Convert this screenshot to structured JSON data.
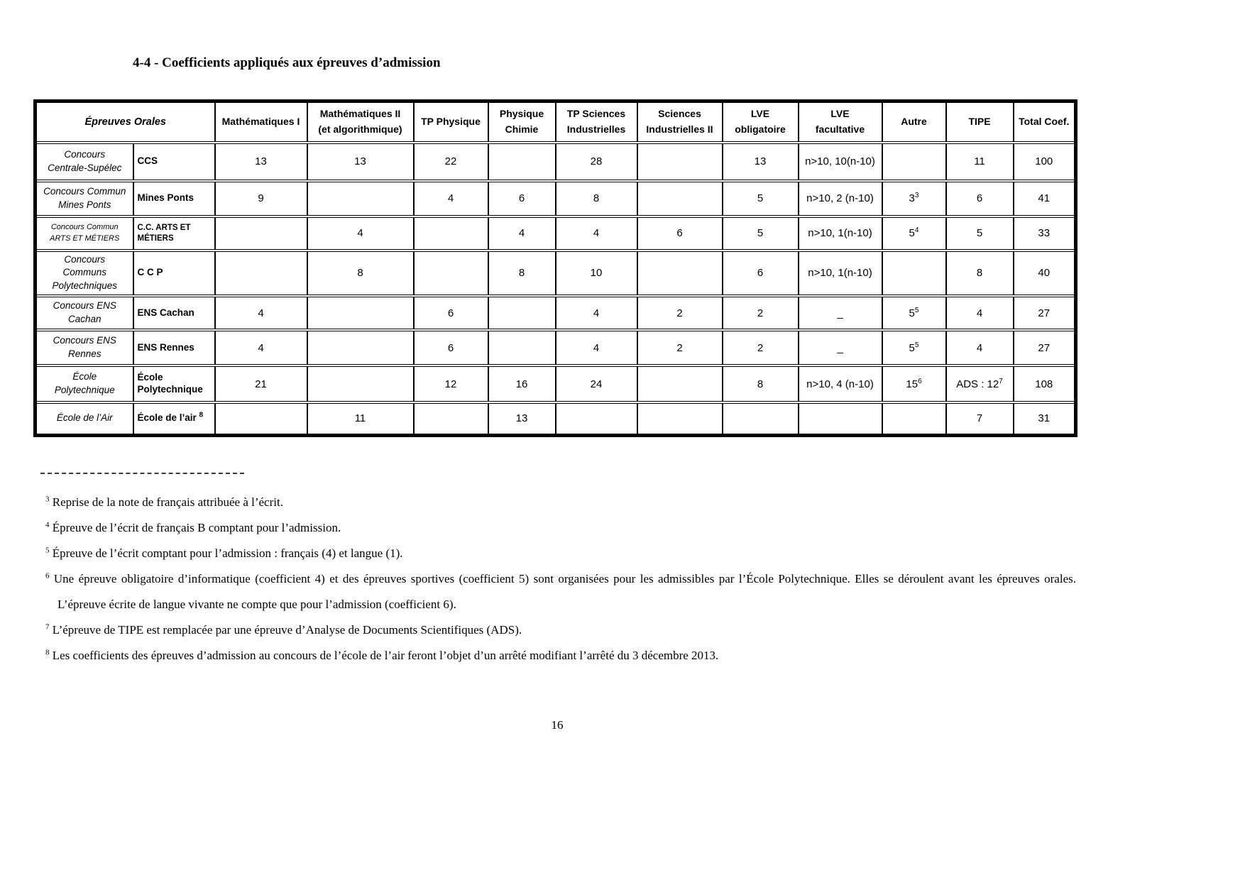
{
  "page": {
    "title": "4-4 - Coefficients appliqués aux épreuves d’admission",
    "page_number": "16"
  },
  "table": {
    "corner_header": "Épreuves Orales",
    "columns": [
      "Mathématiques I",
      "Mathématiques II\n(et algorithmique)",
      "TP Physique",
      "Physique\nChimie",
      "TP Sciences\nIndustrielles",
      "Sciences\nIndustrielles II",
      "LVE\nobligatoire",
      "LVE\nfacultative",
      "Autre",
      "TIPE",
      "Total Coef."
    ],
    "rows": [
      {
        "group": "Concours\nCentrale-Supélec",
        "school": "CCS",
        "cells": [
          "13",
          "13",
          "22",
          "",
          "28",
          "",
          "13",
          "n>10, 10(n-10)",
          "",
          "11",
          "100"
        ]
      },
      {
        "group": "Concours Commun\nMines Ponts",
        "school": "Mines Ponts",
        "cells": [
          "9",
          "",
          "4",
          "6",
          "8",
          "",
          "5",
          "n>10, 2 (n-10)",
          "3^3",
          "6",
          "41"
        ]
      },
      {
        "group": "Concours Commun\nARTS ET MÉTIERS",
        "school": "C.C. ARTS ET MÉTIERS",
        "cells": [
          "",
          "4",
          "",
          "4",
          "4",
          "6",
          "5",
          "n>10, 1(n-10)",
          "5^4",
          "5",
          "33"
        ]
      },
      {
        "group": "Concours\nCommuns\nPolytechniques",
        "school": "C C P",
        "cells": [
          "",
          "8",
          "",
          "8",
          "10",
          "",
          "6",
          "n>10, 1(n-10)",
          "",
          "8",
          "40"
        ]
      },
      {
        "group": "Concours ENS\nCachan",
        "school": "ENS Cachan",
        "cells": [
          "4",
          "",
          "6",
          "",
          "4",
          "2",
          "2",
          "_",
          "5^5",
          "4",
          "27"
        ]
      },
      {
        "group": "Concours ENS\nRennes",
        "school": "ENS Rennes",
        "cells": [
          "4",
          "",
          "6",
          "",
          "4",
          "2",
          "2",
          "_",
          "5^5",
          "4",
          "27"
        ]
      },
      {
        "group": "École\nPolytechnique",
        "school": "École\nPolytechnique",
        "cells": [
          "21",
          "",
          "12",
          "16",
          "24",
          "",
          "8",
          "n>10, 4 (n-10)",
          "15^6",
          "ADS : 12^7",
          "108"
        ]
      },
      {
        "group": "École de l’Air",
        "school": "École de l’air ^8",
        "cells": [
          "",
          "11",
          "",
          "13",
          "",
          "",
          "",
          "",
          "",
          "7",
          "31"
        ]
      }
    ]
  },
  "footnotes": [
    {
      "num": "3",
      "text": "Reprise de la note de français attribuée à l’écrit."
    },
    {
      "num": "4",
      "text": "Épreuve de l’écrit de français B comptant pour l’admission."
    },
    {
      "num": "5",
      "text": "Épreuve de l’écrit comptant pour l’admission : français (4) et langue (1)."
    },
    {
      "num": "6",
      "text": "Une épreuve obligatoire d’informatique (coefficient 4) et des épreuves sportives (coefficient 5) sont organisées pour les admissibles par l’École Polytechnique. Elles se déroulent avant les épreuves orales. L’épreuve écrite de langue vivante ne compte que pour l’admission (coefficient 6)."
    },
    {
      "num": "7",
      "text": "L’épreuve de TIPE est remplacée par une épreuve d’Analyse de Documents Scientifiques (ADS)."
    },
    {
      "num": "8",
      "text": "Les coefficients des épreuves d’admission au concours de l’école de l’air feront l’objet d’un arrêté modifiant l’arrêté du 3 décembre 2013."
    }
  ]
}
